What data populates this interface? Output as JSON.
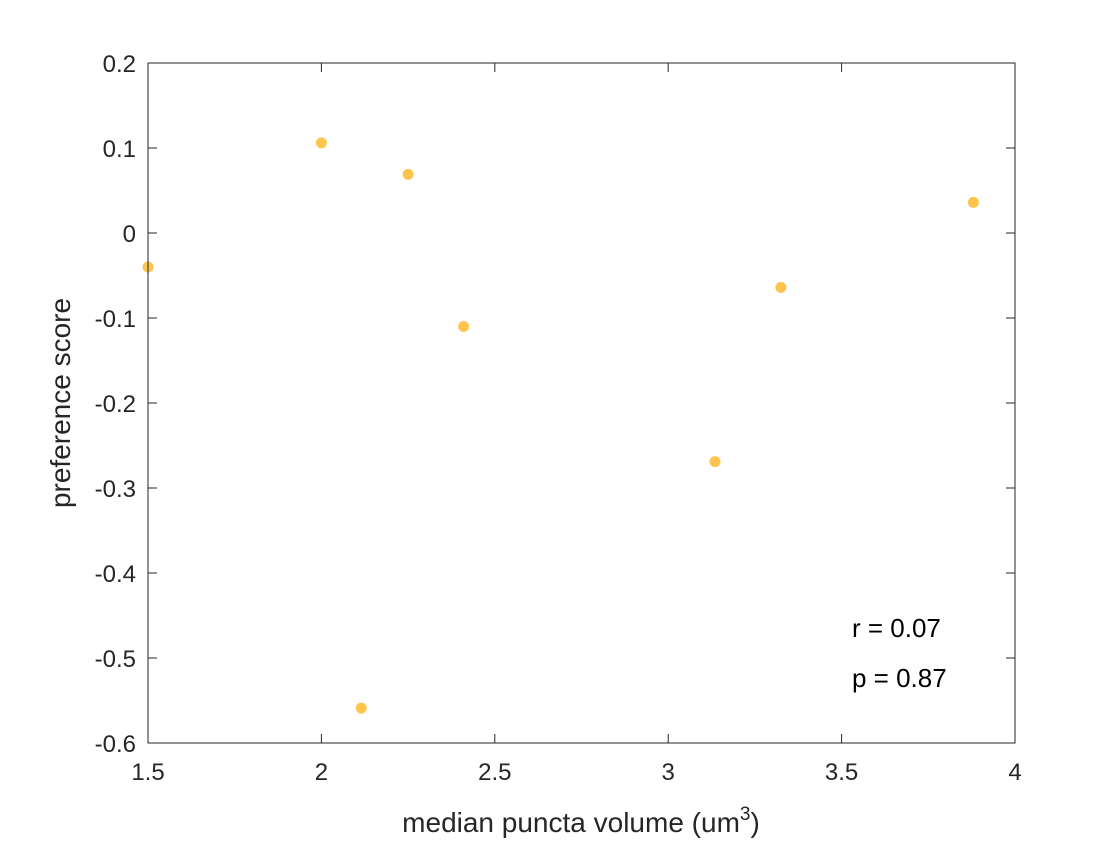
{
  "chart_data": {
    "type": "scatter",
    "title": "",
    "xlabel": "median puncta volume (um",
    "xlabel_superscript": "3",
    "xlabel_suffix": ")",
    "ylabel": "preference score",
    "xlim": [
      1.5,
      4
    ],
    "ylim": [
      -0.6,
      0.2
    ],
    "xticks": [
      1.5,
      2,
      2.5,
      3,
      3.5,
      4
    ],
    "xtick_labels": [
      "1.5",
      "2",
      "2.5",
      "3",
      "3.5",
      "4"
    ],
    "yticks": [
      -0.6,
      -0.5,
      -0.4,
      -0.3,
      -0.2,
      -0.1,
      0,
      0.1,
      0.2
    ],
    "ytick_labels": [
      "-0.6",
      "-0.5",
      "-0.4",
      "-0.3",
      "-0.2",
      "-0.1",
      "0",
      "0.1",
      "0.2"
    ],
    "grid": false,
    "box": true,
    "marker_color": "#FFC44D",
    "points": [
      {
        "x": 1.5,
        "y": -0.04
      },
      {
        "x": 2.0,
        "y": 0.106
      },
      {
        "x": 2.115,
        "y": -0.559
      },
      {
        "x": 2.25,
        "y": 0.069
      },
      {
        "x": 2.41,
        "y": -0.11
      },
      {
        "x": 3.135,
        "y": -0.269
      },
      {
        "x": 3.325,
        "y": -0.064
      },
      {
        "x": 3.88,
        "y": 0.036
      }
    ],
    "annotations": [
      "r = 0.07",
      "p = 0.87"
    ]
  }
}
